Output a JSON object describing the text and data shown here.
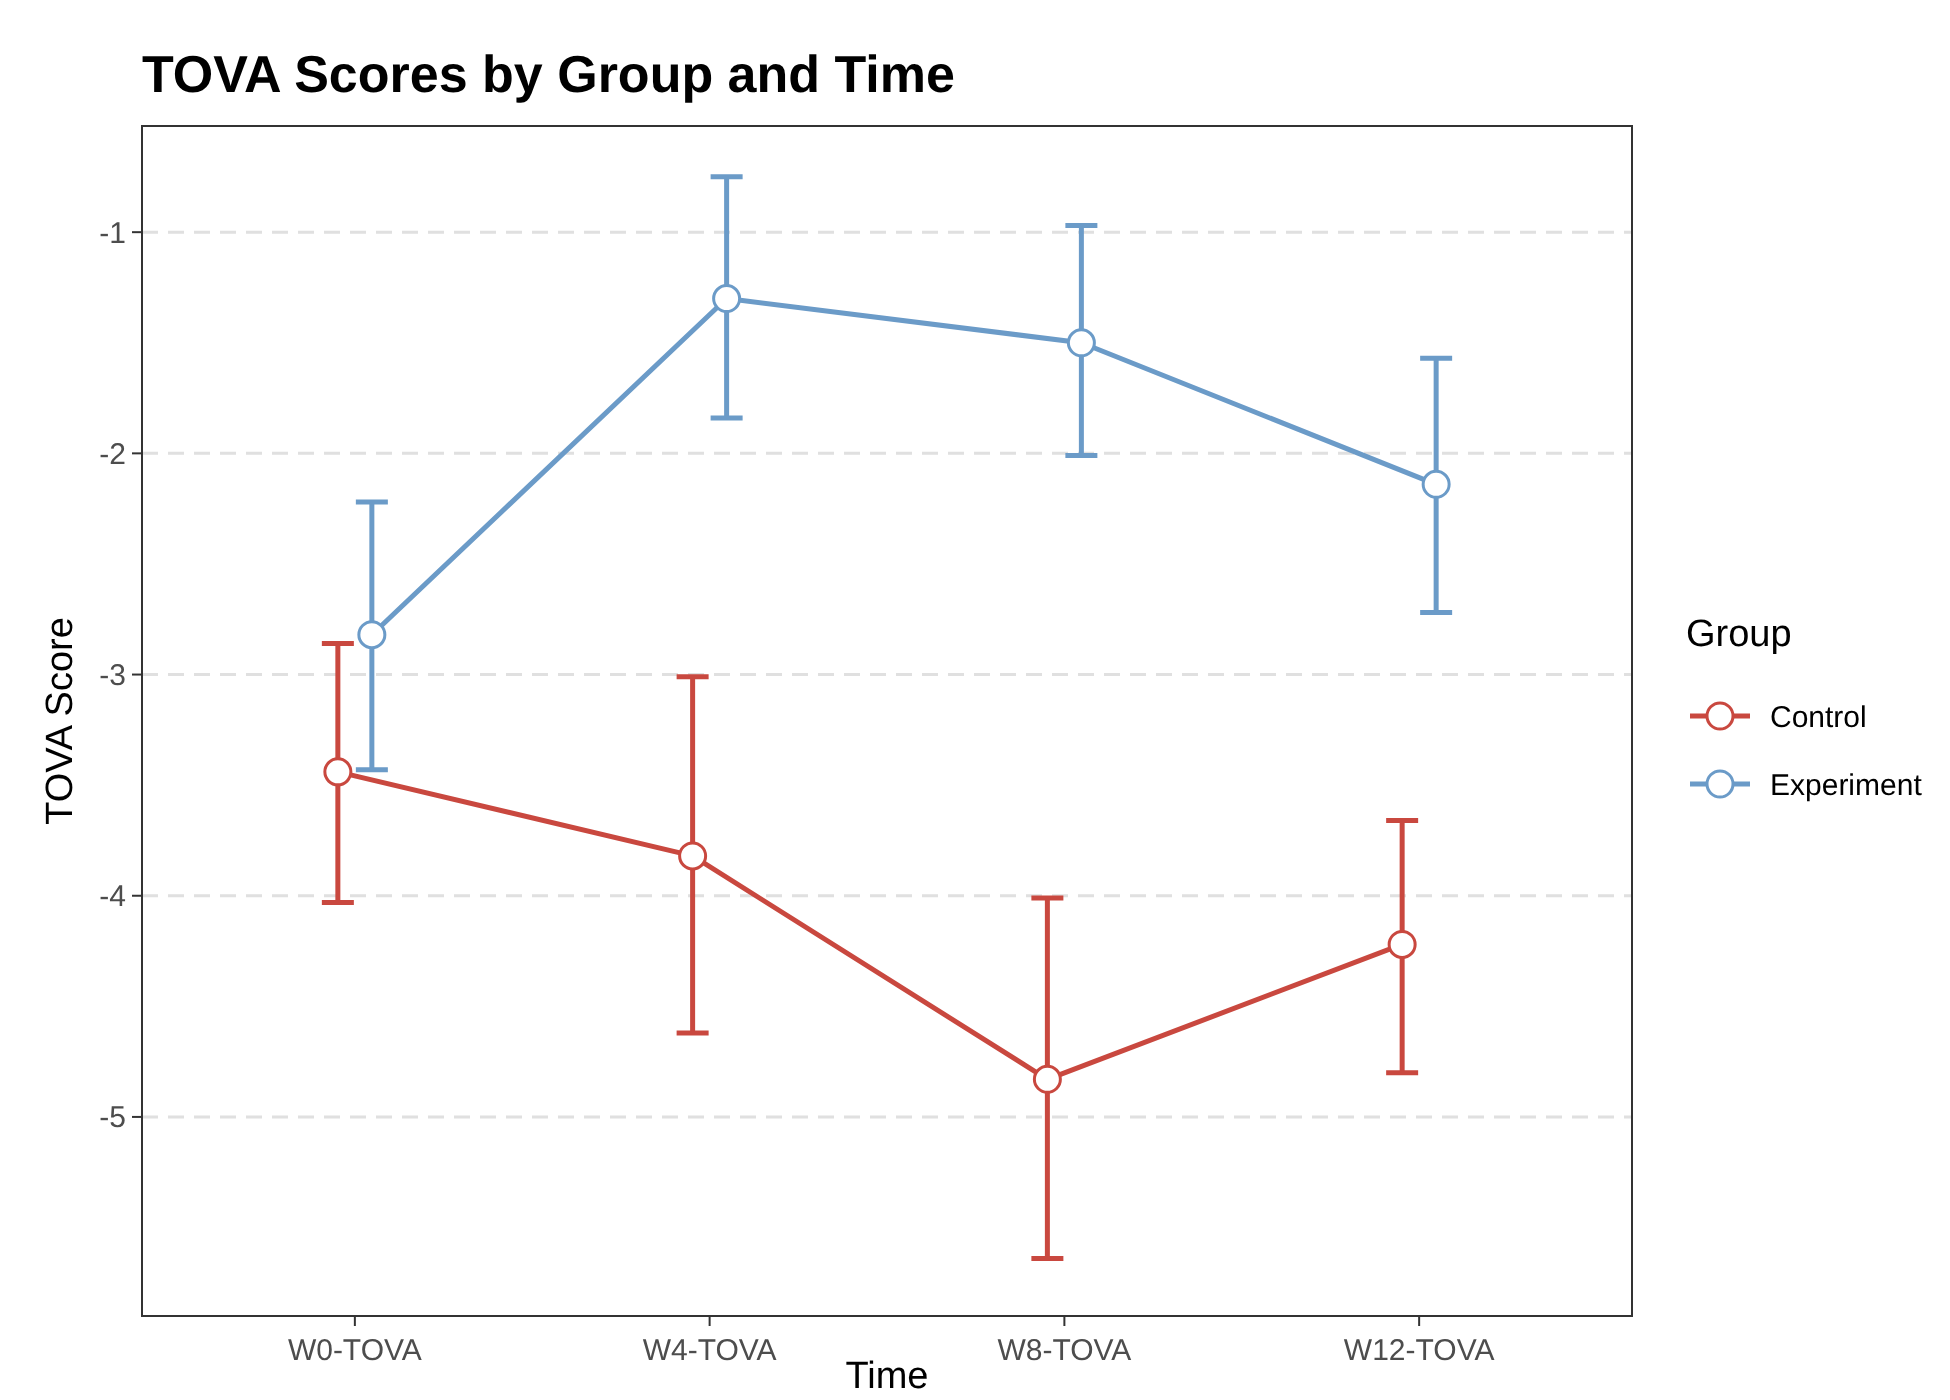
{
  "chart_data": {
    "type": "line",
    "title": "TOVA Scores by Group and Time",
    "xlabel": "Time",
    "ylabel": "TOVA Score",
    "legend_title": "Group",
    "categories": [
      "W0-TOVA",
      "W4-TOVA",
      "W8-TOVA",
      "W12-TOVA"
    ],
    "series": [
      {
        "name": "Control",
        "color": "#c9483f",
        "values": [
          -3.44,
          -3.82,
          -4.83,
          -4.22
        ],
        "errors": [
          [
            -4.03,
            -2.86
          ],
          [
            -4.62,
            -3.01
          ],
          [
            -5.64,
            -4.01
          ],
          [
            -4.8,
            -3.66
          ]
        ]
      },
      {
        "name": "Experiment",
        "color": "#6b9bc8",
        "values": [
          -2.82,
          -1.3,
          -1.5,
          -2.14
        ],
        "errors": [
          [
            -3.43,
            -2.22
          ],
          [
            -1.84,
            -0.75
          ],
          [
            -2.01,
            -0.97
          ],
          [
            -2.72,
            -1.57
          ]
        ]
      }
    ],
    "ylim": [
      -5.9,
      -0.52
    ],
    "yticks": [
      -5,
      -4,
      -3,
      -2,
      -1
    ],
    "grid": "y",
    "legend": "right",
    "marker": "circle",
    "line_style": "solid"
  }
}
